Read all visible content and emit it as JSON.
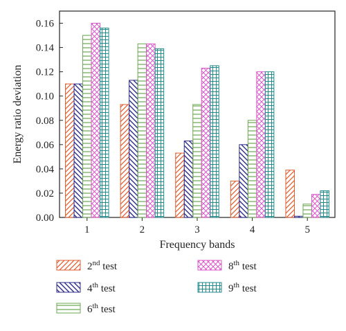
{
  "chart_data": {
    "type": "bar",
    "title": "",
    "xlabel": "Frequency bands",
    "ylabel": "Energy ratio deviation",
    "ylim": [
      0,
      0.17
    ],
    "yticks": [
      "0.00",
      "0.02",
      "0.04",
      "0.06",
      "0.08",
      "0.10",
      "0.12",
      "0.14",
      "0.16"
    ],
    "categories": [
      "1",
      "2",
      "3",
      "4",
      "5"
    ],
    "grid": false,
    "legend_position": "bottom",
    "series": [
      {
        "name_base": "2",
        "name_sup": "nd",
        "name_tail": " test",
        "color": "#e05a2b",
        "pattern": "diag-right",
        "values": [
          0.11,
          0.093,
          0.053,
          0.03,
          0.039
        ]
      },
      {
        "name_base": "4",
        "name_sup": "th",
        "name_tail": " test",
        "color": "#2c2c8c",
        "pattern": "diag-left",
        "values": [
          0.11,
          0.113,
          0.063,
          0.06,
          0.001
        ]
      },
      {
        "name_base": "6",
        "name_sup": "th",
        "name_tail": " test",
        "color": "#6aa84f",
        "pattern": "horizontal",
        "values": [
          0.15,
          0.143,
          0.093,
          0.08,
          0.011
        ]
      },
      {
        "name_base": "8",
        "name_sup": "th",
        "name_tail": " test",
        "color": "#d957c8",
        "pattern": "crosshatch",
        "values": [
          0.16,
          0.143,
          0.123,
          0.12,
          0.019
        ]
      },
      {
        "name_base": "9",
        "name_sup": "th",
        "name_tail": " test",
        "color": "#1f8a8a",
        "pattern": "grid",
        "values": [
          0.156,
          0.139,
          0.125,
          0.12,
          0.022
        ]
      }
    ]
  }
}
